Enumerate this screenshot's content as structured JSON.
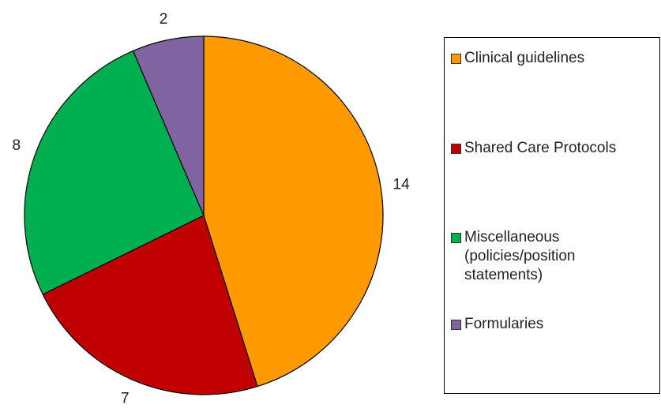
{
  "chart_data": {
    "type": "pie",
    "categories": [
      "Clinical guidelines",
      "Shared Care Protocols",
      "Miscellaneous (policies/position statements)",
      "Formularies"
    ],
    "values": [
      14,
      7,
      8,
      2
    ],
    "colors": [
      "#ff9900",
      "#c00000",
      "#00b050",
      "#8064a2"
    ],
    "legend": "right"
  }
}
